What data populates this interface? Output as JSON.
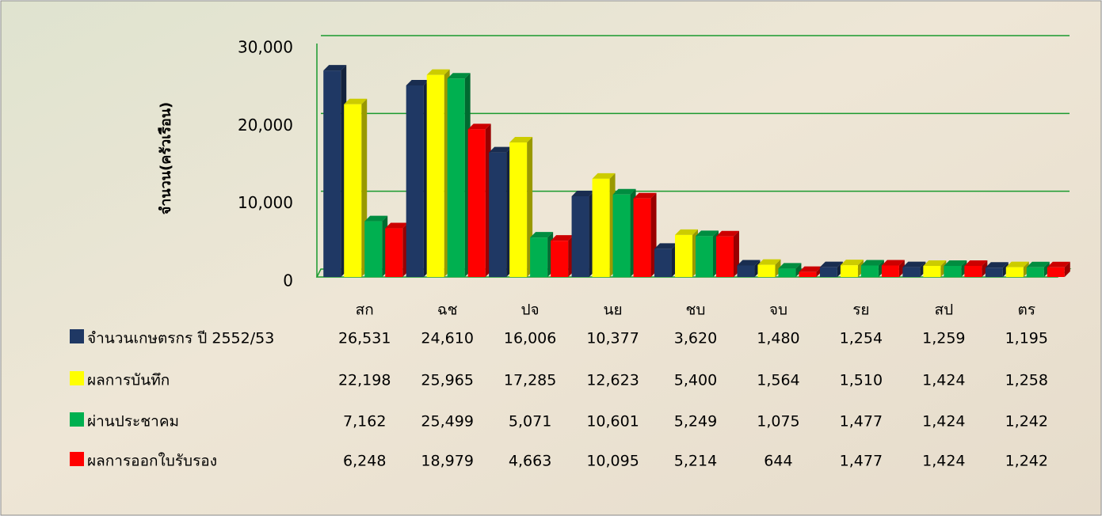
{
  "chart_data": {
    "type": "bar",
    "y_label": "จำนวน(ครัวเรือน)",
    "categories": [
      "สก",
      "ฉช",
      "ปจ",
      "นย",
      "ชบ",
      "จบ",
      "รย",
      "สป",
      "ตร"
    ],
    "series": [
      {
        "name": "จำนวนเกษตรกร ปี 2552/53",
        "color": "#1f3864",
        "values": [
          26531,
          24610,
          16006,
          10377,
          3620,
          1480,
          1254,
          1259,
          1195
        ],
        "value_labels": [
          "26,531",
          "24,610",
          "16,006",
          "10,377",
          "3,620",
          "1,480",
          "1,254",
          "1,259",
          "1,195"
        ]
      },
      {
        "name": "ผลการบันทึก",
        "color": "#ffff00",
        "values": [
          22198,
          25965,
          17285,
          12623,
          5400,
          1564,
          1510,
          1424,
          1258
        ],
        "value_labels": [
          "22,198",
          "25,965",
          "17,285",
          "12,623",
          "5,400",
          "1,564",
          "1,510",
          "1,424",
          "1,258"
        ]
      },
      {
        "name": "ผ่านประชาคม",
        "color": "#00b050",
        "values": [
          7162,
          25499,
          5071,
          10601,
          5249,
          1075,
          1477,
          1424,
          1242
        ],
        "value_labels": [
          "7,162",
          "25,499",
          "5,071",
          "10,601",
          "5,249",
          "1,075",
          "1,477",
          "1,424",
          "1,242"
        ]
      },
      {
        "name": "ผลการออกใบรับรอง",
        "color": "#ff0000",
        "values": [
          6248,
          18979,
          4663,
          10095,
          5214,
          644,
          1477,
          1424,
          1242
        ],
        "value_labels": [
          "6,248",
          "18,979",
          "4,663",
          "10,095",
          "5,214",
          "644",
          "1,477",
          "1,424",
          "1,242"
        ]
      }
    ],
    "ylim": [
      0,
      30000
    ],
    "yticks": [
      0,
      {
        "value": 10000,
        "label": "10,000"
      },
      {
        "value": 20000,
        "label": "20,000"
      },
      {
        "value": 30000,
        "label": "30,000"
      }
    ],
    "grid": true
  }
}
